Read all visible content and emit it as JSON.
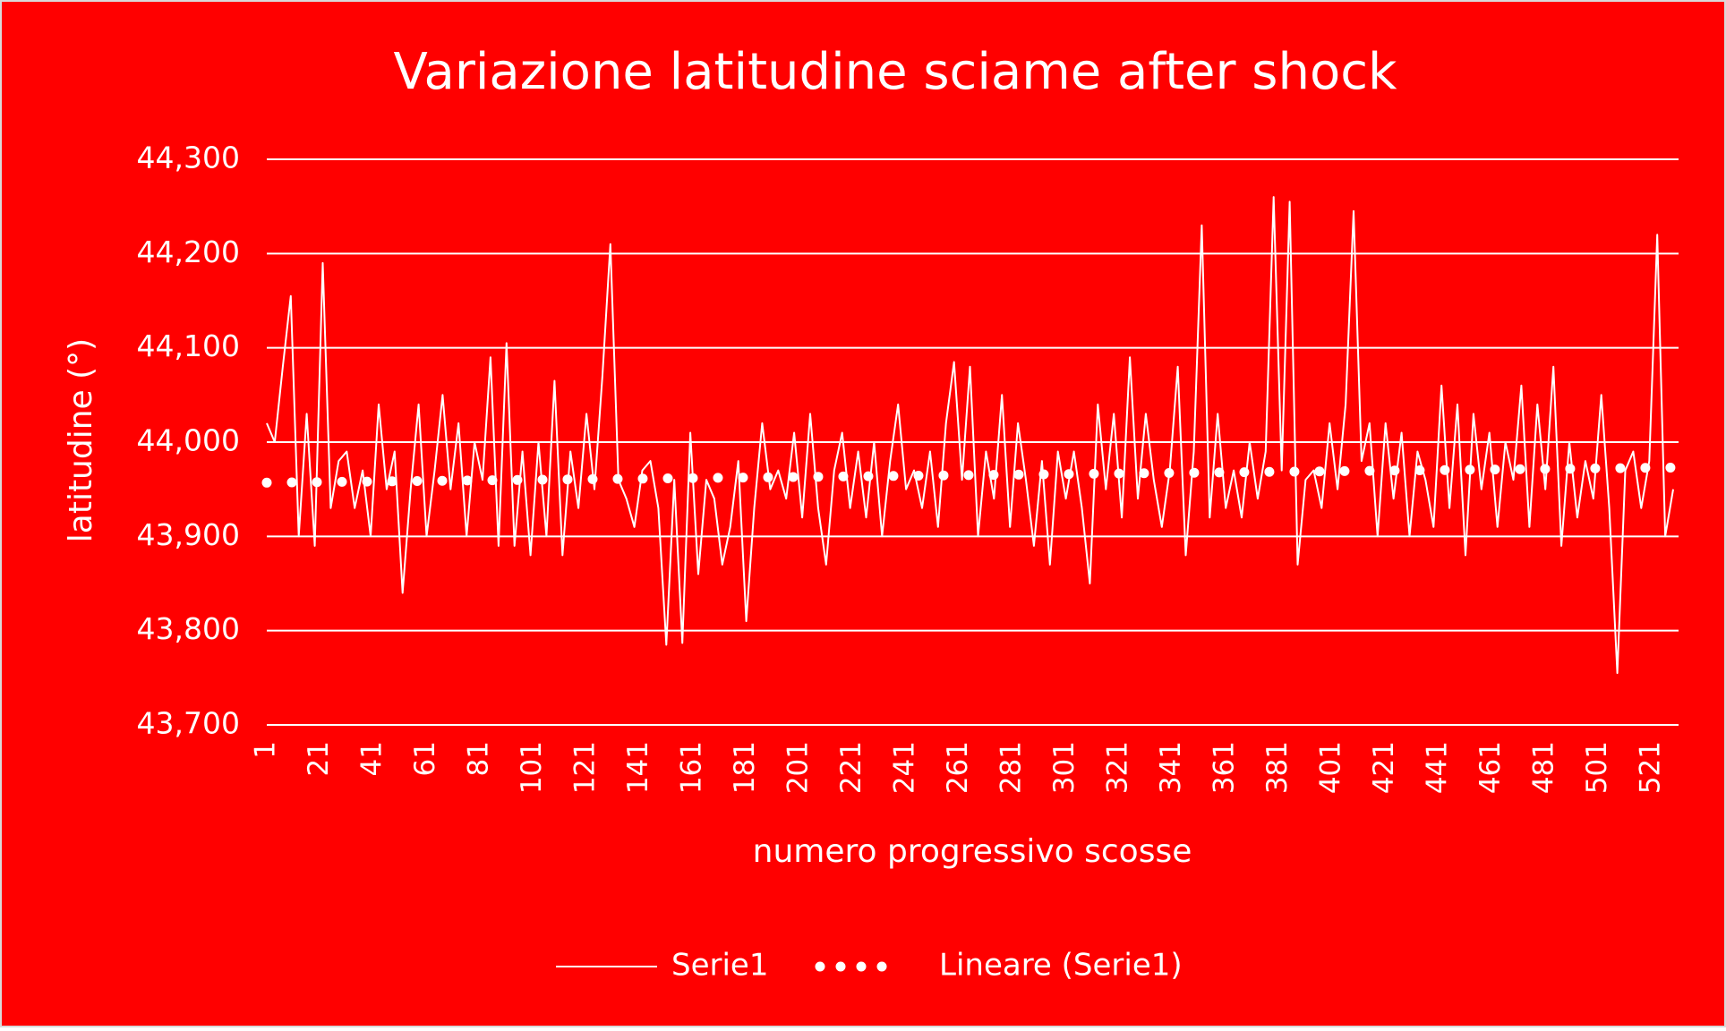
{
  "chart_data": {
    "type": "line",
    "title": "Variazione latitudine sciame after shock",
    "x_label": "numero progressivo scosse",
    "y_label": "latitudine (°)",
    "xlim": [
      1,
      531
    ],
    "ylim": [
      43.7,
      44.3
    ],
    "xticks": [
      1,
      21,
      41,
      61,
      81,
      101,
      121,
      141,
      161,
      181,
      201,
      221,
      241,
      261,
      281,
      301,
      321,
      341,
      361,
      381,
      401,
      421,
      441,
      461,
      481,
      501,
      521
    ],
    "yticks": [
      {
        "value": 43.7,
        "label": "43,700"
      },
      {
        "value": 43.8,
        "label": "43,800"
      },
      {
        "value": 43.9,
        "label": "43,900"
      },
      {
        "value": 44.0,
        "label": "44,000"
      },
      {
        "value": 44.1,
        "label": "44,100"
      },
      {
        "value": 44.2,
        "label": "44,200"
      },
      {
        "value": 44.3,
        "label": "44,300"
      }
    ],
    "grid": true,
    "legend": "bottom",
    "background": "#ff0000",
    "series": [
      {
        "name": "Serie1",
        "color": "#ffffff",
        "style": "solid",
        "x": [
          1,
          4,
          7,
          10,
          13,
          16,
          19,
          22,
          25,
          28,
          31,
          34,
          37,
          40,
          43,
          46,
          49,
          52,
          55,
          58,
          61,
          64,
          67,
          70,
          73,
          76,
          79,
          82,
          85,
          88,
          91,
          94,
          97,
          100,
          103,
          106,
          109,
          112,
          115,
          118,
          121,
          124,
          127,
          130,
          133,
          136,
          139,
          142,
          145,
          148,
          151,
          154,
          157,
          160,
          163,
          166,
          169,
          172,
          175,
          178,
          181,
          184,
          187,
          190,
          193,
          196,
          199,
          202,
          205,
          208,
          211,
          214,
          217,
          220,
          223,
          226,
          229,
          232,
          235,
          238,
          241,
          244,
          247,
          250,
          253,
          256,
          259,
          262,
          265,
          268,
          271,
          274,
          277,
          280,
          283,
          286,
          289,
          292,
          295,
          298,
          301,
          304,
          307,
          310,
          313,
          316,
          319,
          322,
          325,
          328,
          331,
          334,
          337,
          340,
          343,
          346,
          349,
          352,
          355,
          358,
          361,
          364,
          367,
          370,
          373,
          376,
          379,
          382,
          385,
          388,
          391,
          394,
          397,
          400,
          403,
          406,
          409,
          412,
          415,
          418,
          421,
          424,
          427,
          430,
          433,
          436,
          439,
          442,
          445,
          448,
          451,
          454,
          457,
          460,
          463,
          466,
          469,
          472,
          475,
          478,
          481,
          484,
          487,
          490,
          493,
          496,
          499,
          502,
          505,
          508,
          511,
          514,
          517,
          520,
          523,
          526,
          529
        ],
        "values": [
          44.02,
          44.0,
          44.08,
          44.155,
          43.9,
          44.03,
          43.89,
          44.19,
          43.93,
          43.98,
          43.99,
          43.93,
          43.97,
          43.9,
          44.04,
          43.95,
          43.99,
          43.84,
          43.95,
          44.04,
          43.9,
          43.97,
          44.05,
          43.95,
          44.02,
          43.9,
          44.0,
          43.96,
          44.09,
          43.89,
          44.105,
          43.89,
          43.99,
          43.88,
          44.0,
          43.9,
          44.065,
          43.88,
          43.99,
          43.93,
          44.03,
          43.95,
          44.07,
          44.21,
          43.96,
          43.94,
          43.91,
          43.97,
          43.98,
          43.93,
          43.785,
          43.96,
          43.787,
          44.01,
          43.86,
          43.96,
          43.94,
          43.87,
          43.91,
          43.98,
          43.81,
          43.93,
          44.02,
          43.95,
          43.97,
          43.94,
          44.01,
          43.92,
          44.03,
          43.93,
          43.87,
          43.97,
          44.01,
          43.93,
          43.99,
          43.92,
          44.0,
          43.9,
          43.98,
          44.04,
          43.95,
          43.97,
          43.93,
          43.99,
          43.91,
          44.02,
          44.085,
          43.96,
          44.08,
          43.9,
          43.99,
          43.94,
          44.05,
          43.91,
          44.02,
          43.96,
          43.89,
          43.98,
          43.87,
          43.99,
          43.94,
          43.99,
          43.93,
          43.85,
          44.04,
          43.95,
          44.03,
          43.92,
          44.09,
          43.94,
          44.03,
          43.96,
          43.91,
          43.97,
          44.08,
          43.88,
          43.99,
          44.23,
          43.92,
          44.03,
          43.93,
          43.97,
          43.92,
          44.0,
          43.94,
          43.99,
          44.26,
          43.97,
          44.255,
          43.87,
          43.96,
          43.97,
          43.93,
          44.02,
          43.95,
          44.04,
          44.245,
          43.98,
          44.02,
          43.9,
          44.02,
          43.94,
          44.01,
          43.9,
          43.99,
          43.96,
          43.91,
          44.06,
          43.93,
          44.04,
          43.88,
          44.03,
          43.95,
          44.01,
          43.91,
          44.0,
          43.96,
          44.06,
          43.91,
          44.04,
          43.95,
          44.08,
          43.89,
          44.0,
          43.92,
          43.98,
          43.94,
          44.05,
          43.93,
          43.755,
          43.97,
          43.99,
          43.93,
          43.98,
          44.22,
          43.9,
          43.95
        ]
      },
      {
        "name": "Lineare (Serie1)",
        "color": "#ffffff",
        "style": "dotted",
        "x": [
          1,
          531
        ],
        "values": [
          43.957,
          43.973
        ]
      }
    ]
  }
}
